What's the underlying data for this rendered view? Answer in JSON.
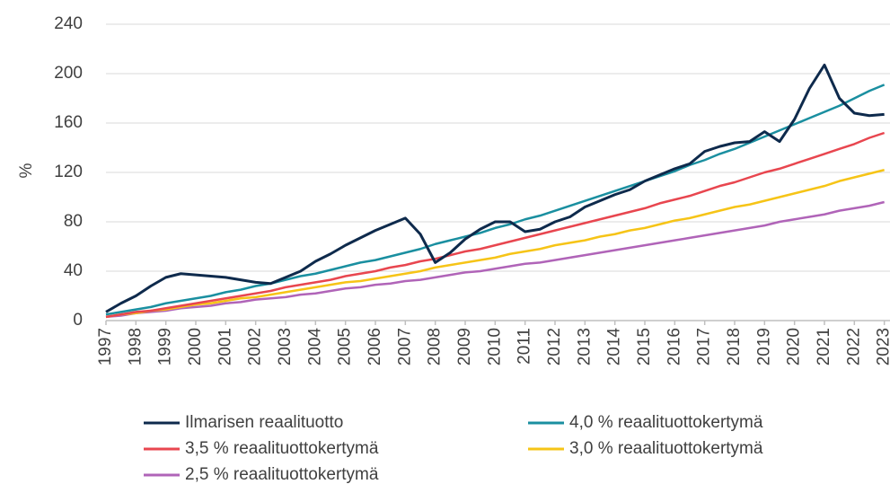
{
  "chart_data": {
    "type": "line",
    "y_label": "%",
    "x": [
      1997,
      1997.5,
      1998,
      1998.5,
      1999,
      1999.5,
      2000,
      2000.5,
      2001,
      2001.5,
      2002,
      2002.5,
      2003,
      2003.5,
      2004,
      2004.5,
      2005,
      2005.5,
      2006,
      2006.5,
      2007,
      2007.5,
      2008,
      2008.5,
      2009,
      2009.5,
      2010,
      2010.5,
      2011,
      2011.5,
      2012,
      2012.5,
      2013,
      2013.5,
      2014,
      2014.5,
      2015,
      2015.5,
      2016,
      2016.5,
      2017,
      2017.5,
      2018,
      2018.5,
      2019,
      2019.5,
      2020,
      2020.5,
      2021,
      2021.5,
      2022,
      2022.5,
      2023
    ],
    "xlim": [
      1997,
      2023.1
    ],
    "xticks": [
      1997,
      1998,
      1999,
      2000,
      2001,
      2002,
      2003,
      2004,
      2005,
      2006,
      2007,
      2008,
      2009,
      2010,
      2011,
      2012,
      2013,
      2014,
      2015,
      2016,
      2017,
      2018,
      2019,
      2020,
      2021,
      2022,
      2023
    ],
    "ylim": [
      0,
      240
    ],
    "yticks": [
      0,
      40,
      80,
      120,
      160,
      200,
      240
    ],
    "grid": true,
    "series": [
      {
        "name": "Ilmarisen reaalituotto",
        "color": "#0e2a4c",
        "values": [
          7,
          14,
          20,
          28,
          35,
          38,
          37,
          36,
          35,
          33,
          31,
          30,
          35,
          40,
          48,
          54,
          61,
          67,
          73,
          78,
          83,
          70,
          47,
          55,
          66,
          74,
          80,
          80,
          72,
          74,
          80,
          84,
          92,
          97,
          102,
          106,
          113,
          118,
          123,
          127,
          137,
          141,
          144,
          145,
          153,
          145,
          163,
          188,
          207,
          180,
          168,
          166,
          167
        ]
      },
      {
        "name": "4,0 % reaalituottokertymä",
        "color": "#1a8fa0",
        "values": [
          5,
          7,
          9,
          11,
          14,
          16,
          18,
          20,
          23,
          25,
          28,
          30,
          33,
          36,
          38,
          41,
          44,
          47,
          49,
          52,
          55,
          58,
          62,
          65,
          68,
          71,
          75,
          78,
          82,
          85,
          89,
          93,
          97,
          101,
          105,
          109,
          113,
          117,
          121,
          126,
          130,
          135,
          139,
          144,
          149,
          154,
          159,
          164,
          169,
          174,
          180,
          186,
          191
        ]
      },
      {
        "name": "3,5 % reaalituottokertymä",
        "color": "#e8464f",
        "values": [
          3,
          5,
          7,
          8,
          10,
          12,
          14,
          16,
          18,
          20,
          22,
          24,
          27,
          29,
          31,
          33,
          36,
          38,
          40,
          43,
          45,
          48,
          50,
          53,
          56,
          58,
          61,
          64,
          67,
          70,
          73,
          76,
          79,
          82,
          85,
          88,
          91,
          95,
          98,
          101,
          105,
          109,
          112,
          116,
          120,
          123,
          127,
          131,
          135,
          139,
          143,
          148,
          152
        ]
      },
      {
        "name": "3,0 % reaalituottokertymä",
        "color": "#f6c417",
        "values": [
          3,
          5,
          6,
          8,
          9,
          11,
          13,
          14,
          16,
          18,
          19,
          21,
          23,
          25,
          27,
          29,
          31,
          32,
          34,
          36,
          38,
          40,
          43,
          45,
          47,
          49,
          51,
          54,
          56,
          58,
          61,
          63,
          65,
          68,
          70,
          73,
          75,
          78,
          81,
          83,
          86,
          89,
          92,
          94,
          97,
          100,
          103,
          106,
          109,
          113,
          116,
          119,
          122
        ]
      },
      {
        "name": "2,5 % reaalituottokertymä",
        "color": "#b064b8",
        "values": [
          3,
          4,
          6,
          7,
          8,
          10,
          11,
          12,
          14,
          15,
          17,
          18,
          19,
          21,
          22,
          24,
          26,
          27,
          29,
          30,
          32,
          33,
          35,
          37,
          39,
          40,
          42,
          44,
          46,
          47,
          49,
          51,
          53,
          55,
          57,
          59,
          61,
          63,
          65,
          67,
          69,
          71,
          73,
          75,
          77,
          80,
          82,
          84,
          86,
          89,
          91,
          93,
          96
        ]
      }
    ]
  }
}
